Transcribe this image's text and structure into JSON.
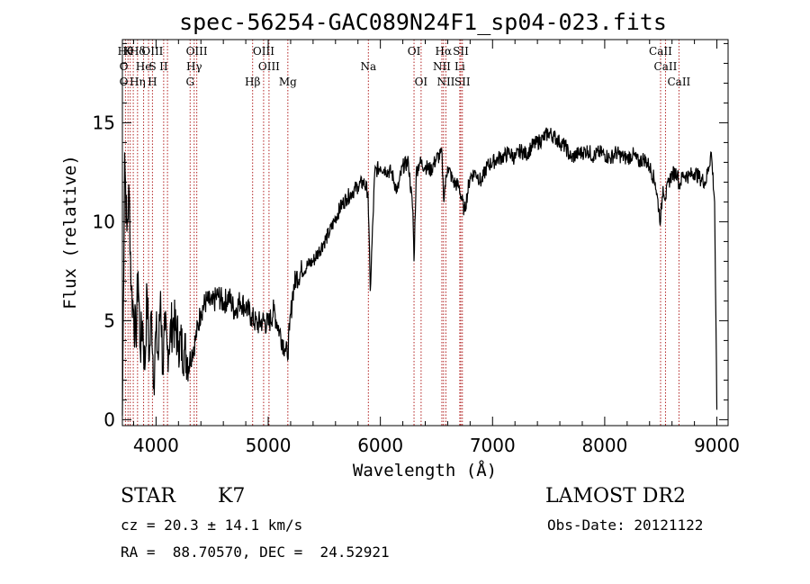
{
  "chart_data": {
    "type": "line",
    "title": "spec-56254-GAC089N24F1_sp04-023.fits",
    "xlabel": "Wavelength (Å)",
    "ylabel": "Flux (relative)",
    "xlim": [
      3700,
      9100
    ],
    "ylim": [
      -0.3,
      19.2
    ],
    "xticks": [
      4000,
      5000,
      6000,
      7000,
      8000,
      9000
    ],
    "yticks": [
      0,
      5,
      10,
      15
    ],
    "series": [
      {
        "x": [
          3700,
          3720,
          3740,
          3760,
          3780,
          3800,
          3820,
          3840,
          3860,
          3880,
          3900,
          3920,
          3940,
          3960,
          3980,
          4000,
          4020,
          4040,
          4060,
          4080,
          4100,
          4150,
          4200,
          4250,
          4300,
          4350,
          4400,
          4450,
          4500,
          4550,
          4600,
          4650,
          4700,
          4750,
          4800,
          4850,
          4900,
          4950,
          5000,
          5050,
          5100,
          5150,
          5170,
          5190,
          5220,
          5250,
          5300,
          5350,
          5400,
          5450,
          5500,
          5550,
          5600,
          5650,
          5700,
          5750,
          5800,
          5850,
          5890,
          5910,
          5950,
          6000,
          6050,
          6100,
          6150,
          6200,
          6250,
          6290,
          6300,
          6320,
          6350,
          6400,
          6450,
          6500,
          6550,
          6563,
          6600,
          6650,
          6700,
          6750,
          6800,
          6850,
          6900,
          6950,
          7000,
          7050,
          7100,
          7150,
          7200,
          7250,
          7300,
          7350,
          7400,
          7450,
          7500,
          7550,
          7600,
          7650,
          7700,
          7750,
          7800,
          7850,
          7900,
          7950,
          8000,
          8050,
          8100,
          8150,
          8200,
          8250,
          8300,
          8350,
          8400,
          8450,
          8498,
          8520,
          8542,
          8570,
          8600,
          8650,
          8662,
          8700,
          8750,
          8800,
          8850,
          8900,
          8950,
          8980,
          9000
        ],
        "y": [
          0.2,
          13.5,
          9.5,
          11.5,
          6.5,
          5.5,
          4.0,
          7.5,
          3.5,
          5.0,
          2.5,
          6.5,
          3.0,
          5.5,
          2.0,
          4.5,
          3.0,
          6.5,
          2.5,
          4.5,
          3.5,
          5.0,
          4.0,
          3.5,
          3.0,
          4.0,
          5.5,
          6.0,
          5.8,
          6.3,
          5.9,
          6.2,
          5.5,
          6.0,
          5.7,
          5.2,
          4.8,
          5.0,
          4.8,
          5.5,
          4.5,
          3.6,
          3.2,
          4.5,
          6.5,
          7.2,
          7.5,
          7.8,
          8.0,
          8.5,
          9.0,
          9.5,
          10.2,
          10.8,
          11.2,
          11.5,
          11.8,
          12.0,
          11.5,
          6.5,
          12.5,
          12.8,
          12.6,
          12.5,
          11.5,
          12.8,
          13.0,
          10.5,
          8.0,
          12.5,
          13.0,
          12.8,
          12.6,
          13.2,
          13.4,
          11.2,
          12.8,
          12.0,
          11.8,
          10.5,
          12.3,
          12.5,
          12.0,
          12.8,
          13.0,
          13.2,
          13.3,
          13.5,
          13.2,
          13.6,
          13.4,
          13.8,
          14.0,
          14.2,
          14.5,
          14.3,
          14.0,
          13.8,
          13.2,
          13.4,
          13.5,
          13.6,
          13.3,
          13.5,
          13.4,
          13.2,
          13.5,
          13.3,
          13.2,
          13.4,
          13.0,
          13.2,
          12.8,
          12.0,
          10.0,
          11.8,
          11.2,
          12.0,
          12.4,
          12.5,
          11.8,
          12.4,
          12.3,
          12.5,
          12.2,
          12.0,
          13.5,
          11.0,
          0.5
        ]
      }
    ],
    "lines_top": [
      {
        "x": 3728,
        "label": "Hθ",
        "row": 0
      },
      {
        "x": 3750,
        "label": "K",
        "row": 0
      },
      {
        "x": 3835,
        "label": "Hδ",
        "row": 0
      },
      {
        "x": 3968,
        "label": "OIII",
        "row": 0
      },
      {
        "x": 4363,
        "label": "OIII",
        "row": 0
      },
      {
        "x": 4959,
        "label": "OIII",
        "row": 0
      },
      {
        "x": 6300,
        "label": "OI",
        "row": 0
      },
      {
        "x": 6563,
        "label": "Hα",
        "row": 0
      },
      {
        "x": 6717,
        "label": "SII",
        "row": 0
      },
      {
        "x": 8498,
        "label": "CaII",
        "row": 0
      },
      {
        "x": 3712,
        "label": "O",
        "row": 1
      },
      {
        "x": 3889,
        "label": "He",
        "row": 1
      },
      {
        "x": 3970,
        "label": "S",
        "row": 1
      },
      {
        "x": 4068,
        "label": "II",
        "row": 1
      },
      {
        "x": 4340,
        "label": "Hγ",
        "row": 1
      },
      {
        "x": 5007,
        "label": "OIII",
        "row": 1
      },
      {
        "x": 5893,
        "label": "Na",
        "row": 1
      },
      {
        "x": 6548,
        "label": "NII",
        "row": 1
      },
      {
        "x": 6708,
        "label": "Li",
        "row": 1
      },
      {
        "x": 8542,
        "label": "CaII",
        "row": 1
      },
      {
        "x": 3712,
        "label": "O",
        "row": 2
      },
      {
        "x": 3835,
        "label": "Hη",
        "row": 2
      },
      {
        "x": 3968,
        "label": "H",
        "row": 2
      },
      {
        "x": 4304,
        "label": "G",
        "row": 2
      },
      {
        "x": 4861,
        "label": "Hβ",
        "row": 2
      },
      {
        "x": 5175,
        "label": "Mg",
        "row": 2
      },
      {
        "x": 6363,
        "label": "OI",
        "row": 2
      },
      {
        "x": 6584,
        "label": "NII",
        "row": 2
      },
      {
        "x": 6731,
        "label": "SII",
        "row": 2
      },
      {
        "x": 8662,
        "label": "CaII",
        "row": 2
      }
    ],
    "line_positions": [
      3727,
      3750,
      3770,
      3797,
      3835,
      3889,
      3933,
      3968,
      4068,
      4102,
      4304,
      4340,
      4363,
      4861,
      4959,
      5007,
      5175,
      5893,
      6300,
      6363,
      6548,
      6563,
      6584,
      6708,
      6717,
      6731,
      8498,
      8542,
      8662
    ],
    "grid": false
  },
  "info": {
    "class": "STAR",
    "subclass": "K7",
    "survey": "LAMOST DR2",
    "cz": "cz = 20.3 ± 14.1 km/s",
    "obs_date": "Obs-Date: 20121122",
    "radec": "RA =  88.70570, DEC =  24.52921"
  },
  "colors": {
    "spectrum": "#000000",
    "lines": "#b22222",
    "axes": "#000000"
  }
}
